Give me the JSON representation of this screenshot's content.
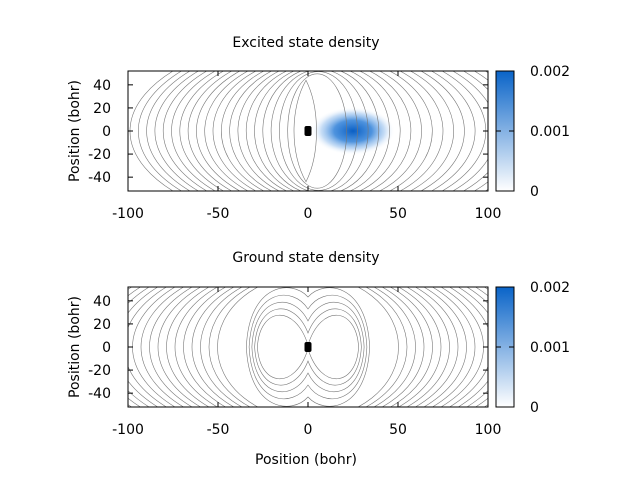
{
  "chart_data": [
    {
      "type": "heatmap",
      "title": "Excited state density",
      "xlabel": "",
      "ylabel": "Position (bohr)",
      "xlim": [
        -100,
        100
      ],
      "ylim": [
        -52,
        52
      ],
      "xticks": [
        "-100",
        "-50",
        "0",
        "50",
        "100"
      ],
      "yticks": [
        "40",
        "20",
        "0",
        "-20",
        "-40"
      ],
      "colorbar": {
        "range": [
          0,
          0.002
        ],
        "ticks": [
          "0.002",
          "0.001",
          "0"
        ],
        "color_low": "#ffffff",
        "color_high": "#0a64c8"
      },
      "density_blob": {
        "center_x": 25,
        "center_y": 0,
        "sigma_x": 9,
        "sigma_y": 8,
        "peak": 0.002
      },
      "nucleus": {
        "x": 0,
        "y": 0
      },
      "contours": "potential contours around nucleus at x=0 and electron density peak near x=25",
      "grid": false
    },
    {
      "type": "heatmap",
      "title": "Ground state density",
      "xlabel": "Position (bohr)",
      "ylabel": "Position (bohr)",
      "xlim": [
        -100,
        100
      ],
      "ylim": [
        -52,
        52
      ],
      "xticks": [
        "-100",
        "-50",
        "0",
        "50",
        "100"
      ],
      "yticks": [
        "40",
        "20",
        "0",
        "-20",
        "-40"
      ],
      "colorbar": {
        "range": [
          0,
          0.002
        ],
        "ticks": [
          "0.002",
          "0.001",
          "0"
        ],
        "color_low": "#ffffff",
        "color_high": "#0a64c8"
      },
      "nucleus": {
        "x": 0,
        "y": 0
      },
      "contours": "symmetric two-center potential contours about x=0",
      "grid": false
    }
  ]
}
